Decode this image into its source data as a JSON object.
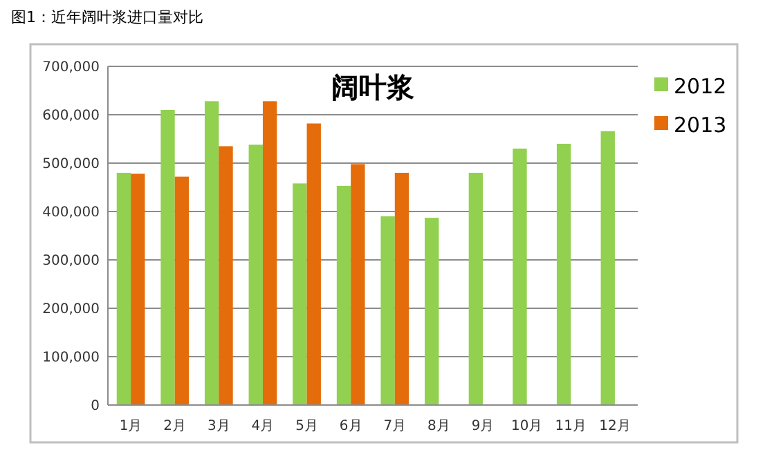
{
  "chart_data": {
    "type": "bar",
    "title": "阔叶浆",
    "annotations": [
      "图1：近年阔叶浆进口量对比"
    ],
    "categories": [
      "1月",
      "2月",
      "3月",
      "4月",
      "5月",
      "6月",
      "7月",
      "8月",
      "9月",
      "10月",
      "11月",
      "12月"
    ],
    "series": [
      {
        "name": "2012",
        "color": "#92d050",
        "values": [
          480000,
          610000,
          628000,
          538000,
          458000,
          453000,
          390000,
          387000,
          480000,
          530000,
          540000,
          566000
        ]
      },
      {
        "name": "2013",
        "color": "#e46c0a",
        "values": [
          478000,
          472000,
          535000,
          628000,
          582000,
          498000,
          480000,
          null,
          null,
          null,
          null,
          null
        ]
      }
    ],
    "ylim": [
      0,
      700000
    ],
    "yticks": [
      {
        "value": 0,
        "label": "0"
      },
      {
        "value": 100000,
        "label": "100,000"
      },
      {
        "value": 200000,
        "label": "200,000"
      },
      {
        "value": 300000,
        "label": "300,000"
      },
      {
        "value": 400000,
        "label": "400,000"
      },
      {
        "value": 500000,
        "label": "500,000"
      },
      {
        "value": 600000,
        "label": "600,000"
      },
      {
        "value": 700000,
        "label": "700,000"
      }
    ],
    "grid": "y",
    "legend": "right"
  }
}
